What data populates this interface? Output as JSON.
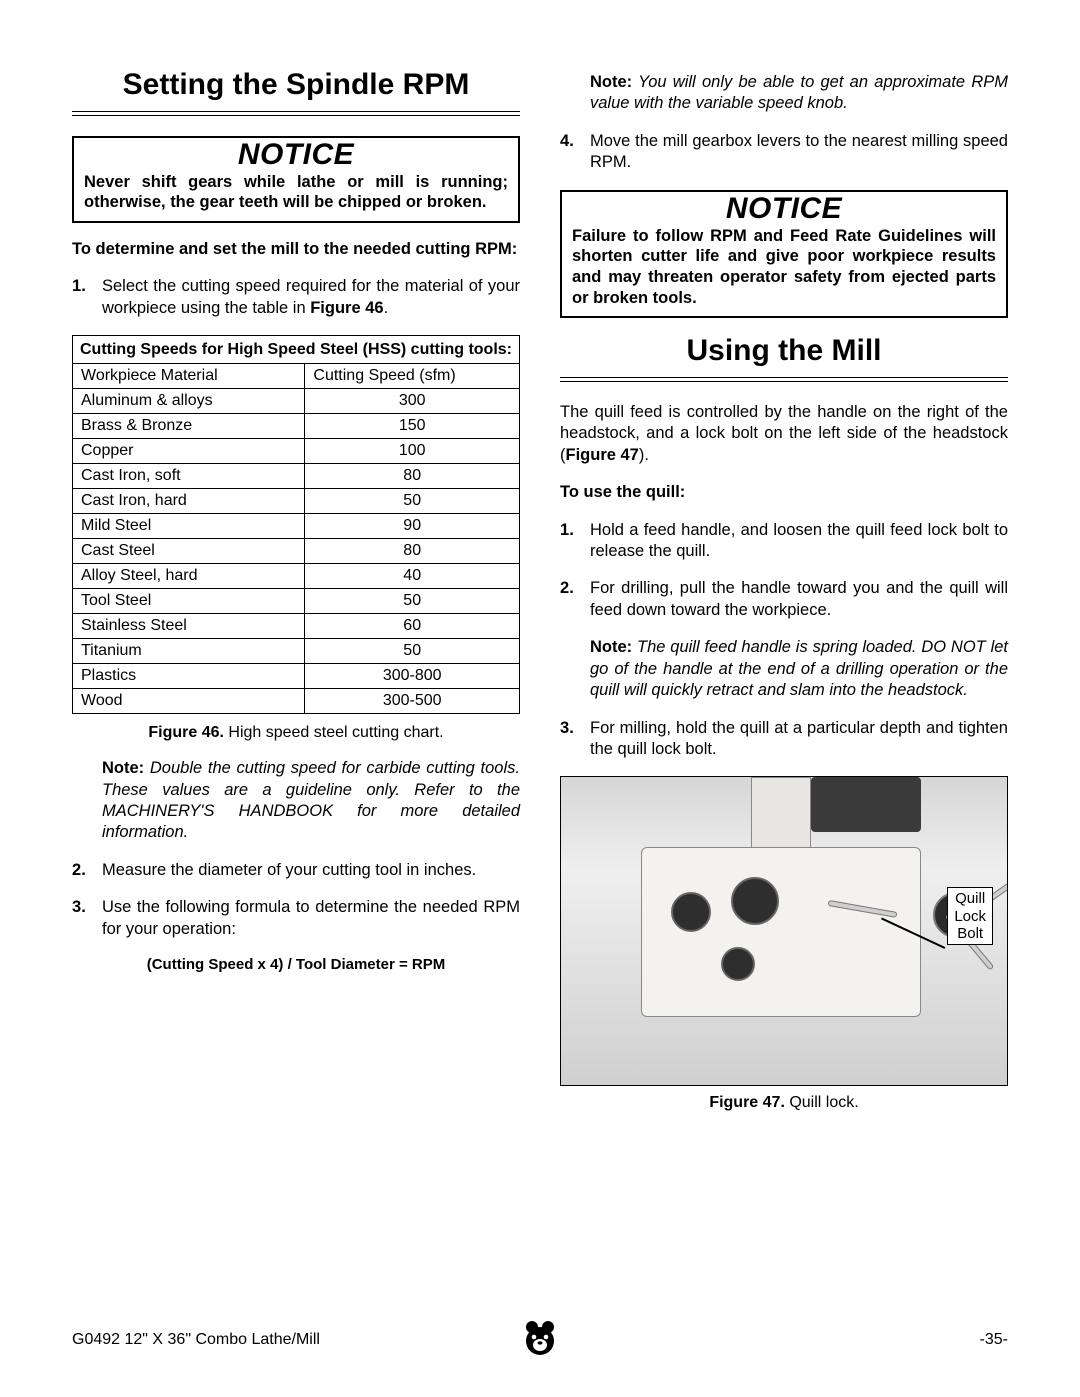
{
  "left": {
    "heading": "Setting the Spindle RPM",
    "notice_label": "NOTICE",
    "notice_text": "Never shift gears while lathe or mill is running; otherwise, the gear teeth will be chipped or broken.",
    "instr_heading": "To determine and set the mill to the needed cutting RPM:",
    "step1_a": "Select the cutting speed required for the material of your workpiece using the table in ",
    "step1_b": "Figure 46",
    "step1_c": ".",
    "table_title": "Cutting Speeds for High Speed Steel (HSS) cutting tools:",
    "col1": "Workpiece Material",
    "col2": "Cutting Speed (sfm)",
    "rows": [
      {
        "m": "Aluminum & alloys",
        "s": "300"
      },
      {
        "m": "Brass & Bronze",
        "s": "150"
      },
      {
        "m": "Copper",
        "s": "100"
      },
      {
        "m": "Cast Iron, soft",
        "s": "80"
      },
      {
        "m": "Cast Iron, hard",
        "s": "50"
      },
      {
        "m": "Mild Steel",
        "s": "90"
      },
      {
        "m": "Cast Steel",
        "s": "80"
      },
      {
        "m": "Alloy Steel, hard",
        "s": "40"
      },
      {
        "m": "Tool Steel",
        "s": "50"
      },
      {
        "m": "Stainless Steel",
        "s": "60"
      },
      {
        "m": "Titanium",
        "s": "50"
      },
      {
        "m": "Plastics",
        "s": "300-800"
      },
      {
        "m": "Wood",
        "s": "300-500"
      }
    ],
    "fig46_label": "Figure 46.",
    "fig46_caption": " High speed steel cutting chart.",
    "note1_label": "Note:",
    "note1_text": " Double the cutting speed for carbide cutting tools. These values are a guideline only. Refer to the MACHINERY'S HANDBOOK  for more detailed information.",
    "step2": "Measure the diameter of your cutting tool in inches.",
    "step3": "Use the following formula to determine the needed RPM for your operation:",
    "formula": "(Cutting Speed x 4) / Tool Diameter = RPM"
  },
  "right": {
    "note_top_label": "Note:",
    "note_top_text": " You will only be able to get an approximate RPM value with the variable speed knob.",
    "step4": "Move the mill gearbox levers to the nearest milling speed RPM.",
    "notice_label": "NOTICE",
    "notice_text": "Failure to follow RPM and Feed Rate Guidelines will shorten cutter life and give poor workpiece results and may threaten operator safety from ejected parts or broken tools.",
    "heading2": "Using the Mill",
    "para_a": "The quill feed is controlled by the handle on the right of the headstock, and a lock bolt on the left side of the headstock (",
    "para_b": "Figure 47",
    "para_c": ").",
    "instr_heading": "To use the quill:",
    "q1": "Hold a feed handle, and loosen the quill feed lock bolt to release the quill.",
    "q2": "For drilling, pull the handle toward you and the quill will feed down toward the workpiece.",
    "qnote_label": "Note:",
    "qnote_text": " The quill feed handle is spring loaded. DO NOT let go of the handle at the end of a drilling operation or the quill will quickly retract and slam into the headstock.",
    "q3": "For milling, hold the quill at a particular depth and tighten the quill lock bolt.",
    "callout": "Quill Lock Bolt",
    "fig47_label": "Figure 47.",
    "fig47_caption": " Quill lock."
  },
  "footer": {
    "left": "G0492 12\" X 36\" Combo Lathe/Mill",
    "right": "-35-"
  }
}
